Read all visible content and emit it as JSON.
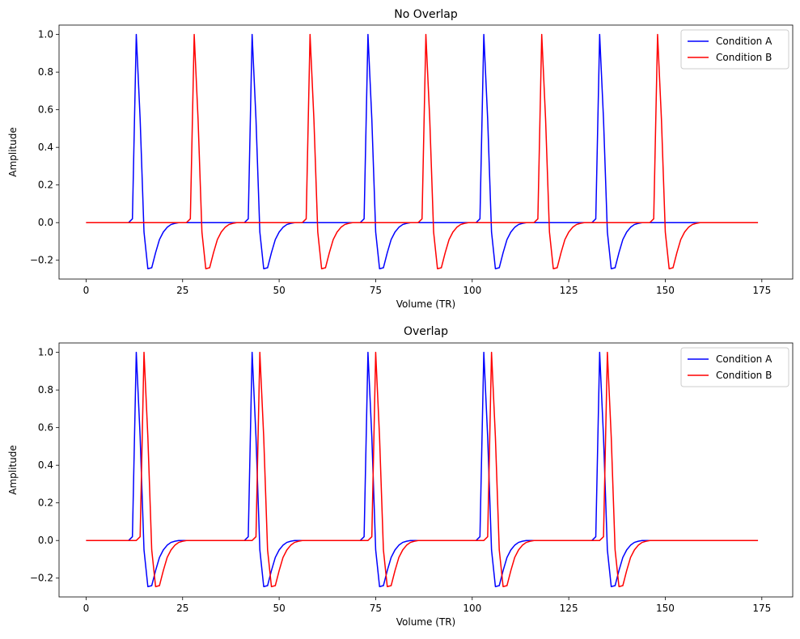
{
  "chart_data": [
    {
      "type": "line",
      "title": "No Overlap",
      "xlabel": "Volume (TR)",
      "ylabel": "Amplitude",
      "xlim": [
        -7,
        183
      ],
      "ylim": [
        -0.3,
        1.05
      ],
      "xticks": [
        0,
        25,
        50,
        75,
        100,
        125,
        150,
        175
      ],
      "yticks": [
        -0.2,
        0.0,
        0.2,
        0.4,
        0.6,
        0.8,
        1.0
      ],
      "x_range": [
        0,
        174
      ],
      "legend": "top-right",
      "series": [
        {
          "name": "Condition A",
          "color": "#0000ff",
          "onsets": [
            13,
            43,
            73,
            103,
            133
          ]
        },
        {
          "name": "Condition B",
          "color": "#ff0000",
          "onsets": [
            28,
            58,
            88,
            118,
            148
          ]
        }
      ]
    },
    {
      "type": "line",
      "title": "Overlap",
      "xlabel": "Volume (TR)",
      "ylabel": "Amplitude",
      "xlim": [
        -7,
        183
      ],
      "ylim": [
        -0.3,
        1.05
      ],
      "xticks": [
        0,
        25,
        50,
        75,
        100,
        125,
        150,
        175
      ],
      "yticks": [
        -0.2,
        0.0,
        0.2,
        0.4,
        0.6,
        0.8,
        1.0
      ],
      "x_range": [
        0,
        174
      ],
      "legend": "top-right",
      "series": [
        {
          "name": "Condition A",
          "color": "#0000ff",
          "onsets": [
            13,
            43,
            73,
            103,
            133
          ]
        },
        {
          "name": "Condition B",
          "color": "#ff0000",
          "onsets": [
            15,
            45,
            75,
            105,
            135
          ]
        }
      ]
    }
  ],
  "hrf_shape": {
    "peak_offset": 0,
    "values_by_offset": [
      [
        -2,
        0.0
      ],
      [
        -1,
        0.02
      ],
      [
        0,
        1.0
      ],
      [
        1,
        0.55
      ],
      [
        2,
        -0.05
      ],
      [
        3,
        -0.245
      ],
      [
        4,
        -0.24
      ],
      [
        5,
        -0.16
      ],
      [
        6,
        -0.09
      ],
      [
        7,
        -0.05
      ],
      [
        8,
        -0.025
      ],
      [
        9,
        -0.01
      ],
      [
        10,
        -0.004
      ],
      [
        11,
        0.0
      ]
    ]
  }
}
